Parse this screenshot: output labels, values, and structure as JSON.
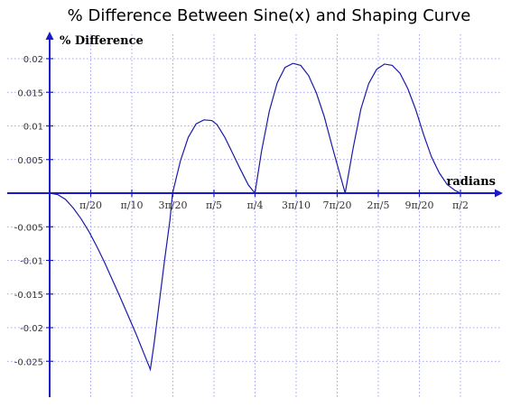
{
  "chart_data": {
    "type": "line",
    "title": "% Difference Between Sine(x) and Shaping Curve",
    "xlabel": "radians",
    "ylabel": "% Difference",
    "x_ticks": [
      {
        "value": 0.15708,
        "label": "π/20"
      },
      {
        "value": 0.31416,
        "label": "π/10"
      },
      {
        "value": 0.47124,
        "label": "3π/20"
      },
      {
        "value": 0.62832,
        "label": "π/5"
      },
      {
        "value": 0.7854,
        "label": "π/4"
      },
      {
        "value": 0.94248,
        "label": "3π/10"
      },
      {
        "value": 1.09956,
        "label": "7π/20"
      },
      {
        "value": 1.25664,
        "label": "2π/5"
      },
      {
        "value": 1.41372,
        "label": "9π/20"
      },
      {
        "value": 1.5708,
        "label": "π/2"
      }
    ],
    "y_ticks": [
      {
        "value": 0.02,
        "label": "0.02"
      },
      {
        "value": 0.015,
        "label": "0.015"
      },
      {
        "value": 0.01,
        "label": "0.01"
      },
      {
        "value": 0.005,
        "label": "0.005"
      },
      {
        "value": -0.005,
        "label": "-0.005"
      },
      {
        "value": -0.01,
        "label": "-0.01"
      },
      {
        "value": -0.015,
        "label": "-0.015"
      },
      {
        "value": -0.02,
        "label": "-0.02"
      },
      {
        "value": -0.025,
        "label": "-0.025"
      }
    ],
    "xlim": [
      0,
      1.571
    ],
    "ylim": [
      -0.029,
      0.023
    ],
    "grid": true,
    "series": [
      {
        "x": [
          0,
          0.03,
          0.06,
          0.09,
          0.12,
          0.15,
          0.18,
          0.21,
          0.24,
          0.27,
          0.3,
          0.33,
          0.36,
          0.385,
          0.4,
          0.42,
          0.44,
          0.46,
          0.47,
          0.5,
          0.53,
          0.56,
          0.59,
          0.62,
          0.64,
          0.67,
          0.7,
          0.73,
          0.76,
          0.785,
          0.81,
          0.84,
          0.87,
          0.9,
          0.93,
          0.96,
          0.99,
          1.02,
          1.05,
          1.08,
          1.11,
          1.13,
          1.16,
          1.19,
          1.22,
          1.25,
          1.28,
          1.31,
          1.34,
          1.37,
          1.4,
          1.43,
          1.46,
          1.49,
          1.52,
          1.55,
          1.571
        ],
        "y": [
          0,
          -0.0002,
          -0.0009,
          -0.0022,
          -0.0038,
          -0.0057,
          -0.0079,
          -0.0103,
          -0.0129,
          -0.0155,
          -0.0182,
          -0.0209,
          -0.0238,
          -0.0262,
          -0.0222,
          -0.016,
          -0.0098,
          -0.004,
          0,
          0.0048,
          0.0083,
          0.0103,
          0.0109,
          0.0108,
          0.0102,
          0.0083,
          0.0059,
          0.0035,
          0.0012,
          0,
          0.0062,
          0.0122,
          0.0164,
          0.0187,
          0.0193,
          0.019,
          0.0175,
          0.0149,
          0.0114,
          0.007,
          0.0028,
          0,
          0.0066,
          0.0125,
          0.0163,
          0.0184,
          0.0192,
          0.019,
          0.0178,
          0.0155,
          0.0124,
          0.0087,
          0.0054,
          0.003,
          0.0013,
          0.0004,
          0
        ]
      }
    ]
  }
}
